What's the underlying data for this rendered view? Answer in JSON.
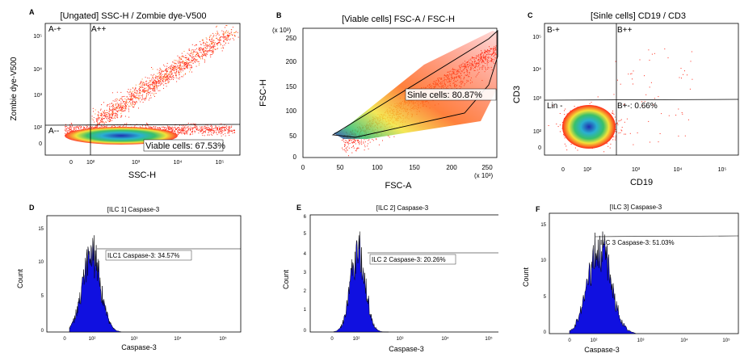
{
  "panels": {
    "A": {
      "letter": "A",
      "title": "[Ungated] SSC-H / Zombie dye-V500",
      "xlabel": "SSC-H",
      "ylabel": "Zombie dye-V500",
      "xticks": [
        "0",
        "10²",
        "10³",
        "10⁴",
        "10⁵"
      ],
      "yticks": [
        "10⁵",
        "10⁴",
        "10³",
        "10²",
        "0"
      ],
      "gates": [
        "A-+",
        "A++",
        "A--",
        "Viable cells: 67.53%"
      ]
    },
    "B": {
      "letter": "B",
      "title": "[Viable cells] FSC-A / FSC-H",
      "xlabel": "FSC-A",
      "ylabel": "FSC-H",
      "xunit": "(x 10³)",
      "yunit": "(x 10³)",
      "xticks": [
        "0",
        "50",
        "100",
        "150",
        "200",
        "250"
      ],
      "yticks": [
        "250",
        "200",
        "150",
        "100",
        "50",
        "0"
      ],
      "gate_label": "Sinle cells: 80.87%"
    },
    "C": {
      "letter": "C",
      "title": "[Sinle cells] CD19 / CD3",
      "xlabel": "CD19",
      "ylabel": "CD3",
      "xticks": [
        "0",
        "10²",
        "10³",
        "10⁴",
        "10⁵"
      ],
      "yticks": [
        "10⁵",
        "10⁴",
        "10³",
        "10²",
        "0"
      ],
      "gates": [
        "B-+",
        "B++",
        "Lin -",
        "B+-: 0.66%"
      ]
    },
    "D": {
      "letter": "D",
      "title": "[ILC 1] Caspase-3",
      "xlabel": "Caspase-3",
      "ylabel": "Count",
      "xticks": [
        "0",
        "10²",
        "10³",
        "10⁴",
        "10⁵"
      ],
      "yticks": [
        "15",
        "10",
        "5",
        "0"
      ],
      "gate_label": "ILC1 Caspase-3: 34.57%"
    },
    "E": {
      "letter": "E",
      "title": "[ILC 2] Caspase-3",
      "xlabel": "Caspase-3",
      "ylabel": "Count",
      "xticks": [
        "0",
        "10²",
        "10³",
        "10⁴",
        "10⁵"
      ],
      "yticks": [
        "6",
        "5",
        "4",
        "3",
        "2",
        "1",
        "0"
      ],
      "gate_label": "ILC 2 Caspase-3: 20.26%"
    },
    "F": {
      "letter": "F",
      "title": "[ILC 3] Caspase-3",
      "xlabel": "Caspase-3",
      "ylabel": "Count",
      "xticks": [
        "0",
        "10²",
        "10³",
        "10⁴",
        "10⁵"
      ],
      "yticks": [
        "15",
        "10",
        "5",
        "0"
      ],
      "gate_label": "ILC 3 Caspase-3: 51.03%"
    }
  },
  "colors": {
    "density_high": "#1f2fb0",
    "density_mid": "#39c06a",
    "density_low": "#ff2a1a",
    "hist_fill": "#1010e0"
  },
  "chart_data": [
    {
      "type": "scatter",
      "panel": "A",
      "x_scale": "biexponential",
      "y_scale": "biexponential",
      "xlim": [
        "0",
        "10⁵"
      ],
      "ylim": [
        "0",
        "10⁵"
      ],
      "gates": [
        {
          "name": "Viable cells",
          "percent": 67.53
        }
      ],
      "quadrants": [
        "A-+",
        "A++",
        "A--"
      ]
    },
    {
      "type": "scatter",
      "panel": "B",
      "xlim": [
        0,
        260
      ],
      "ylim": [
        0,
        260
      ],
      "gates": [
        {
          "name": "Sinle cells",
          "percent": 80.87
        }
      ]
    },
    {
      "type": "scatter",
      "panel": "C",
      "x_scale": "biexponential",
      "y_scale": "biexponential",
      "xlim": [
        "0",
        "10⁵"
      ],
      "ylim": [
        "0",
        "10⁵"
      ],
      "gates": [
        {
          "name": "B+-",
          "percent": 0.66
        }
      ],
      "quadrants": [
        "B-+",
        "B++",
        "Lin -",
        "B+-"
      ]
    },
    {
      "type": "bar",
      "panel": "D",
      "subtype": "histogram",
      "ylim": [
        0,
        17
      ],
      "peak": 15,
      "gates": [
        {
          "name": "ILC1 Caspase-3",
          "percent": 34.57
        }
      ]
    },
    {
      "type": "bar",
      "panel": "E",
      "subtype": "histogram",
      "ylim": [
        0,
        6.3
      ],
      "peak": 5.6,
      "gates": [
        {
          "name": "ILC 2 Caspase-3",
          "percent": 20.26
        }
      ]
    },
    {
      "type": "bar",
      "panel": "F",
      "subtype": "histogram",
      "ylim": [
        0,
        16.5
      ],
      "peak": 15.5,
      "gates": [
        {
          "name": "ILC 3 Caspase-3",
          "percent": 51.03
        }
      ]
    }
  ]
}
